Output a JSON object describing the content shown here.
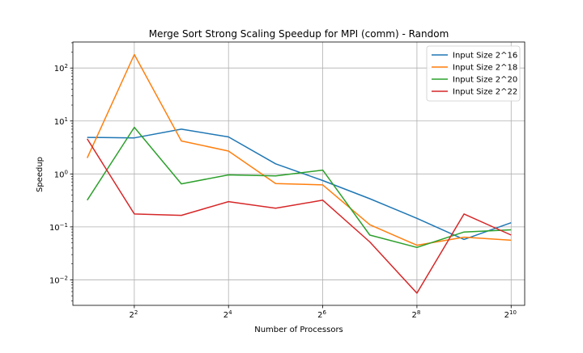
{
  "chart_data": {
    "type": "line",
    "title": "Merge Sort Strong Scaling Speedup for MPI (comm) - Random",
    "xlabel": "Number of Processors",
    "ylabel": "Speedup",
    "x_scale": "log2",
    "y_scale": "log10",
    "x": [
      2,
      4,
      8,
      16,
      32,
      64,
      128,
      256,
      512,
      1024
    ],
    "xlim": [
      1.62,
      1250
    ],
    "ylim": [
      0.0033,
      310
    ],
    "x_ticks": [
      {
        "value": 4,
        "base": "2",
        "exp": "2"
      },
      {
        "value": 16,
        "base": "2",
        "exp": "4"
      },
      {
        "value": 64,
        "base": "2",
        "exp": "6"
      },
      {
        "value": 256,
        "base": "2",
        "exp": "8"
      },
      {
        "value": 1024,
        "base": "2",
        "exp": "10"
      }
    ],
    "y_ticks": [
      {
        "value": 0.01,
        "base": "10",
        "exp": "−2"
      },
      {
        "value": 0.1,
        "base": "10",
        "exp": "−1"
      },
      {
        "value": 1,
        "base": "10",
        "exp": "0"
      },
      {
        "value": 10,
        "base": "10",
        "exp": "1"
      },
      {
        "value": 100,
        "base": "10",
        "exp": "2"
      }
    ],
    "grid": true,
    "legend_position": "top-right",
    "series": [
      {
        "name": "Input Size 2^16",
        "color": "#1f77b4",
        "values": [
          4.9,
          4.8,
          7.0,
          5.0,
          1.55,
          0.75,
          0.34,
          0.145,
          0.058,
          0.12
        ]
      },
      {
        "name": "Input Size 2^18",
        "color": "#ff7f0e",
        "values": [
          2.0,
          180,
          4.2,
          2.7,
          0.66,
          0.62,
          0.11,
          0.045,
          0.064,
          0.056
        ]
      },
      {
        "name": "Input Size 2^20",
        "color": "#2ca02c",
        "values": [
          0.32,
          7.6,
          0.65,
          0.96,
          0.92,
          1.18,
          0.07,
          0.041,
          0.08,
          0.088
        ]
      },
      {
        "name": "Input Size 2^22",
        "color": "#d62728",
        "values": [
          4.6,
          0.175,
          0.165,
          0.3,
          0.225,
          0.32,
          0.052,
          0.0056,
          0.175,
          0.07
        ]
      }
    ]
  }
}
